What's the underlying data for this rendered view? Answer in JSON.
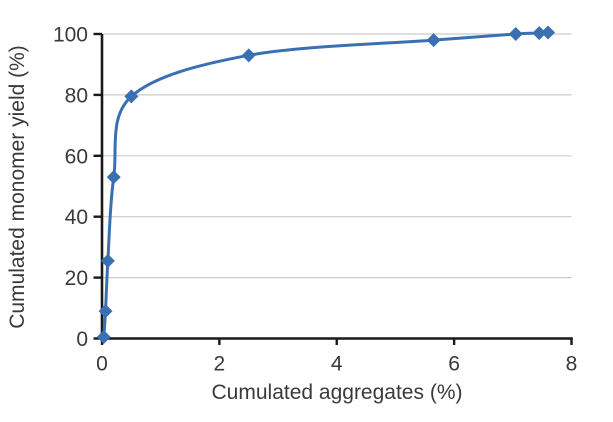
{
  "chart_data": {
    "type": "line",
    "title": "",
    "xlabel": "Cumulated aggregates (%)",
    "ylabel": "Cumulated monomer yield (%)",
    "xlim": [
      0,
      8
    ],
    "ylim": [
      0,
      100
    ],
    "x_ticks": [
      0,
      2,
      4,
      6,
      8
    ],
    "y_ticks": [
      0,
      20,
      40,
      60,
      80,
      100
    ],
    "grid": "horizontal-only",
    "legend_position": "none",
    "line_style": "smooth",
    "marker_shape": "diamond",
    "series": [
      {
        "name": "Cumulated monomer yield",
        "points": [
          [
            0.03,
            0.5
          ],
          [
            0.06,
            9
          ],
          [
            0.1,
            25.5
          ],
          [
            0.2,
            53
          ],
          [
            0.5,
            79.5
          ],
          [
            2.5,
            93
          ],
          [
            5.65,
            98
          ],
          [
            7.05,
            100
          ],
          [
            7.45,
            100.3
          ],
          [
            7.6,
            100.5
          ]
        ]
      }
    ],
    "colors": {
      "line": "#3A70B2",
      "marker": "#3A70B2",
      "grid": "#CBCBCB",
      "axis": "#1A1A1A",
      "text": "#3A3A3A",
      "background": "#FFFFFF"
    }
  }
}
